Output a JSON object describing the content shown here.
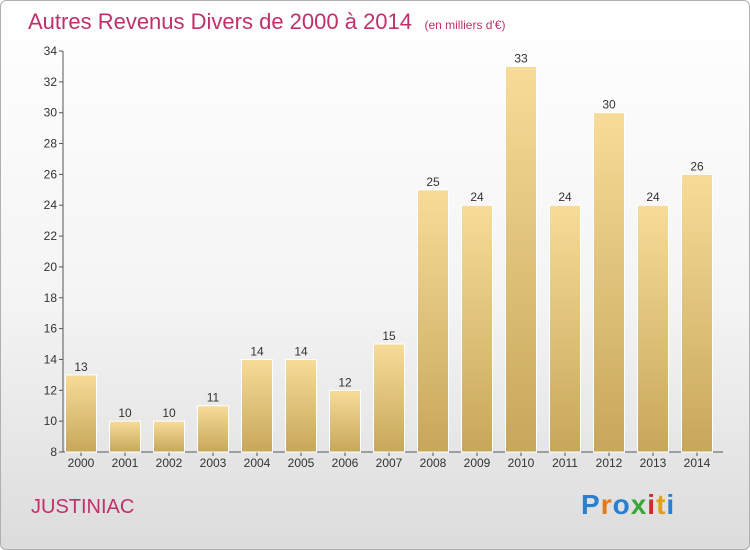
{
  "title": "Autres Revenus Divers de 2000 à 2014",
  "unit_note": "(en milliers d'€)",
  "commune": "JUSTINIAC",
  "logo": {
    "letters": [
      "P",
      "r",
      "o",
      "x",
      "i",
      "t",
      "i"
    ],
    "colors": [
      "#2a7fcf",
      "#e07a1a",
      "#2a7fcf",
      "#3aa63a",
      "#d02a2a",
      "#e0a01a",
      "#2a7fcf"
    ]
  },
  "colors": {
    "bar_top": "#f7dc98",
    "bar_bottom": "#c7a75a",
    "title": "#c0306a",
    "axis": "#555555"
  },
  "chart_data": {
    "type": "bar",
    "categories": [
      "2000",
      "2001",
      "2002",
      "2003",
      "2004",
      "2005",
      "2006",
      "2007",
      "2008",
      "2009",
      "2010",
      "2011",
      "2012",
      "2013",
      "2014"
    ],
    "values": [
      13,
      10,
      10,
      11,
      14,
      14,
      12,
      15,
      25,
      24,
      33,
      24,
      30,
      24,
      26
    ],
    "title": "Autres Revenus Divers de 2000 à 2014",
    "subtitle": "(en milliers d'€)",
    "xlabel": "",
    "ylabel": "",
    "ylim": [
      8,
      34
    ],
    "yticks": [
      8,
      10,
      12,
      14,
      16,
      18,
      20,
      22,
      24,
      26,
      28,
      30,
      32,
      34
    ],
    "grid": false,
    "data_labels": true
  }
}
